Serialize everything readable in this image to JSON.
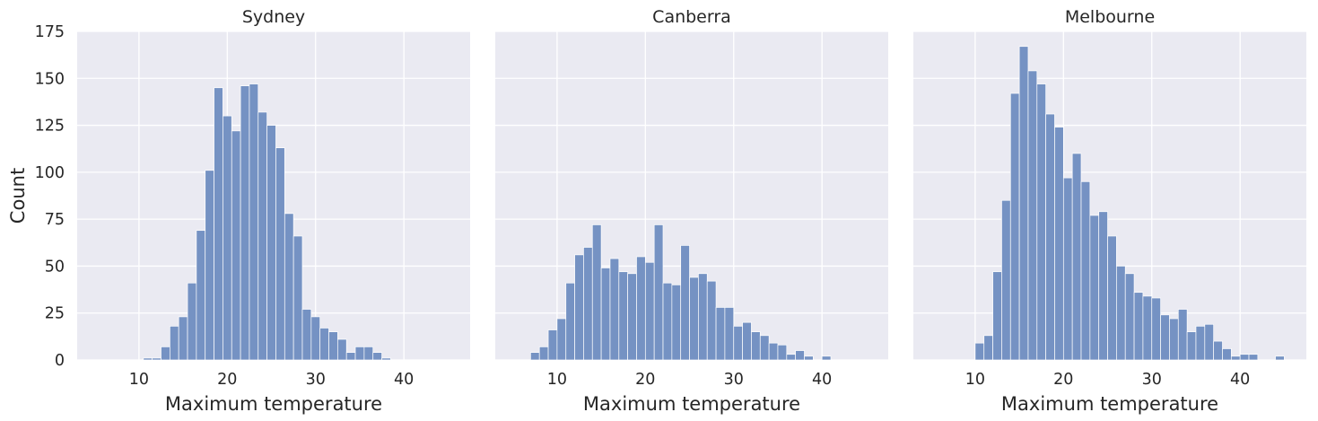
{
  "chart_data": [
    {
      "type": "bar",
      "title": "Sydney",
      "xlabel": "Maximum temperature",
      "ylabel": "Count",
      "xlim": [
        3,
        47.5
      ],
      "ylim": [
        0,
        175
      ],
      "xticks": [
        10,
        20,
        30,
        40
      ],
      "yticks": [
        0,
        25,
        50,
        75,
        100,
        125,
        150,
        175
      ],
      "grid": true,
      "bin_edges": [
        10.5,
        11.5,
        12.5,
        13.5,
        14.5,
        15.5,
        16.5,
        17.5,
        18.5,
        19.5,
        20.5,
        21.5,
        22.5,
        23.5,
        24.5,
        25.5,
        26.5,
        27.5,
        28.5,
        29.5,
        30.5,
        31.5,
        32.5,
        33.5,
        34.5,
        35.5,
        36.5,
        37.5,
        38.5
      ],
      "counts": [
        1,
        1,
        7,
        18,
        23,
        41,
        69,
        101,
        145,
        130,
        122,
        146,
        147,
        132,
        125,
        113,
        78,
        66,
        27,
        23,
        17,
        15,
        11,
        4,
        7,
        7,
        4,
        1
      ]
    },
    {
      "type": "bar",
      "title": "Canberra",
      "xlabel": "Maximum temperature",
      "ylabel": "",
      "xlim": [
        3,
        47.5
      ],
      "ylim": [
        0,
        175
      ],
      "xticks": [
        10,
        20,
        30,
        40
      ],
      "yticks": [
        0,
        25,
        50,
        75,
        100,
        125,
        150,
        175
      ],
      "grid": true,
      "bin_edges": [
        7,
        8,
        9,
        10,
        11,
        12,
        13,
        14,
        15,
        16,
        17,
        18,
        19,
        20,
        21,
        22,
        23,
        24,
        25,
        26,
        27,
        28,
        29,
        30,
        31,
        32,
        33,
        34,
        35,
        36,
        37,
        38,
        39,
        40,
        41
      ],
      "counts": [
        4,
        7,
        16,
        22,
        41,
        56,
        60,
        72,
        49,
        54,
        47,
        46,
        55,
        52,
        72,
        41,
        40,
        61,
        44,
        46,
        42,
        28,
        28,
        18,
        20,
        15,
        13,
        9,
        8,
        3,
        5,
        2,
        0,
        2
      ]
    },
    {
      "type": "bar",
      "title": "Melbourne",
      "xlabel": "Maximum temperature",
      "ylabel": "",
      "xlim": [
        3,
        47.5
      ],
      "ylim": [
        0,
        175
      ],
      "xticks": [
        10,
        20,
        30,
        40
      ],
      "yticks": [
        0,
        25,
        50,
        75,
        100,
        125,
        150,
        175
      ],
      "grid": true,
      "bin_edges": [
        10,
        11,
        12,
        13,
        14,
        15,
        16,
        17,
        18,
        19,
        20,
        21,
        22,
        23,
        24,
        25,
        26,
        27,
        28,
        29,
        30,
        31,
        32,
        33,
        34,
        35,
        36,
        37,
        38,
        39,
        40,
        41,
        42,
        43,
        44,
        45
      ],
      "counts": [
        9,
        13,
        47,
        85,
        142,
        167,
        154,
        147,
        131,
        124,
        97,
        110,
        95,
        77,
        79,
        66,
        50,
        46,
        36,
        34,
        33,
        24,
        22,
        27,
        15,
        18,
        19,
        10,
        6,
        2,
        3,
        3,
        0,
        0,
        2
      ]
    }
  ]
}
